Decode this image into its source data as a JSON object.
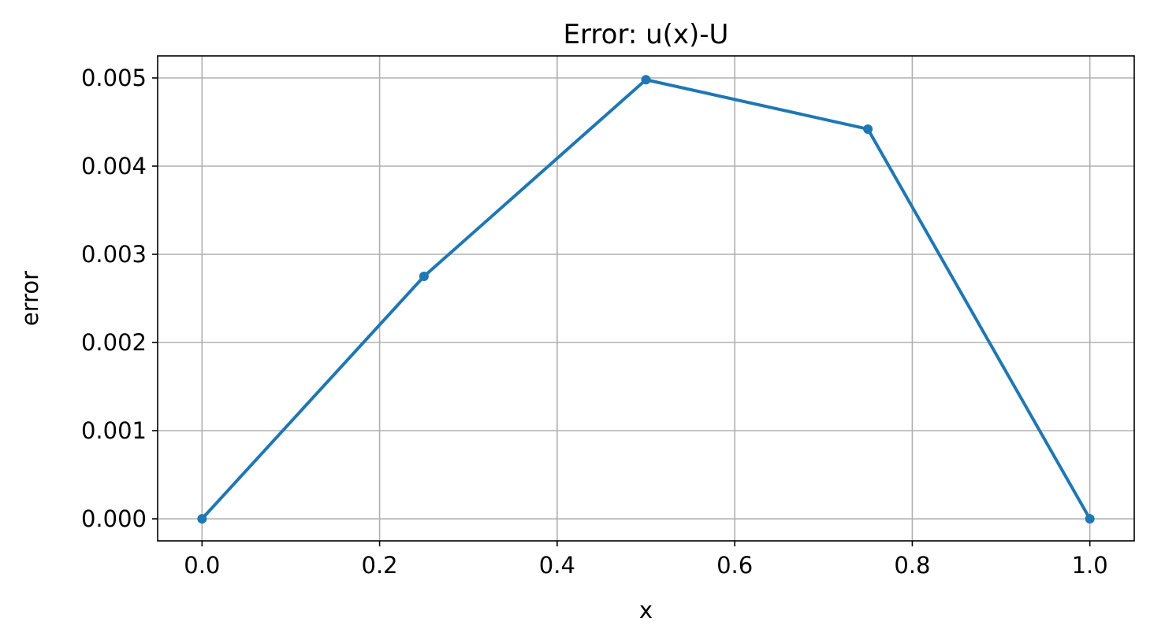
{
  "chart_data": {
    "type": "line",
    "title": "Error: u(x)-U",
    "xlabel": "x",
    "ylabel": "error",
    "xlim": [
      -0.05,
      1.05
    ],
    "ylim": [
      -0.00025,
      0.00525
    ],
    "xticks": [
      0.0,
      0.2,
      0.4,
      0.6,
      0.8,
      1.0
    ],
    "xtick_labels": [
      "0.0",
      "0.2",
      "0.4",
      "0.6",
      "0.8",
      "1.0"
    ],
    "yticks": [
      0.0,
      0.001,
      0.002,
      0.003,
      0.004,
      0.005
    ],
    "ytick_labels": [
      "0.000",
      "0.001",
      "0.002",
      "0.003",
      "0.004",
      "0.005"
    ],
    "grid": true,
    "legend": false,
    "series": [
      {
        "x": [
          0.0,
          0.25,
          0.5,
          0.75,
          1.0
        ],
        "y": [
          0.0,
          0.00275,
          0.00498,
          0.00442,
          0.0
        ],
        "color": "#1f77b4",
        "marker": "circle"
      }
    ]
  }
}
